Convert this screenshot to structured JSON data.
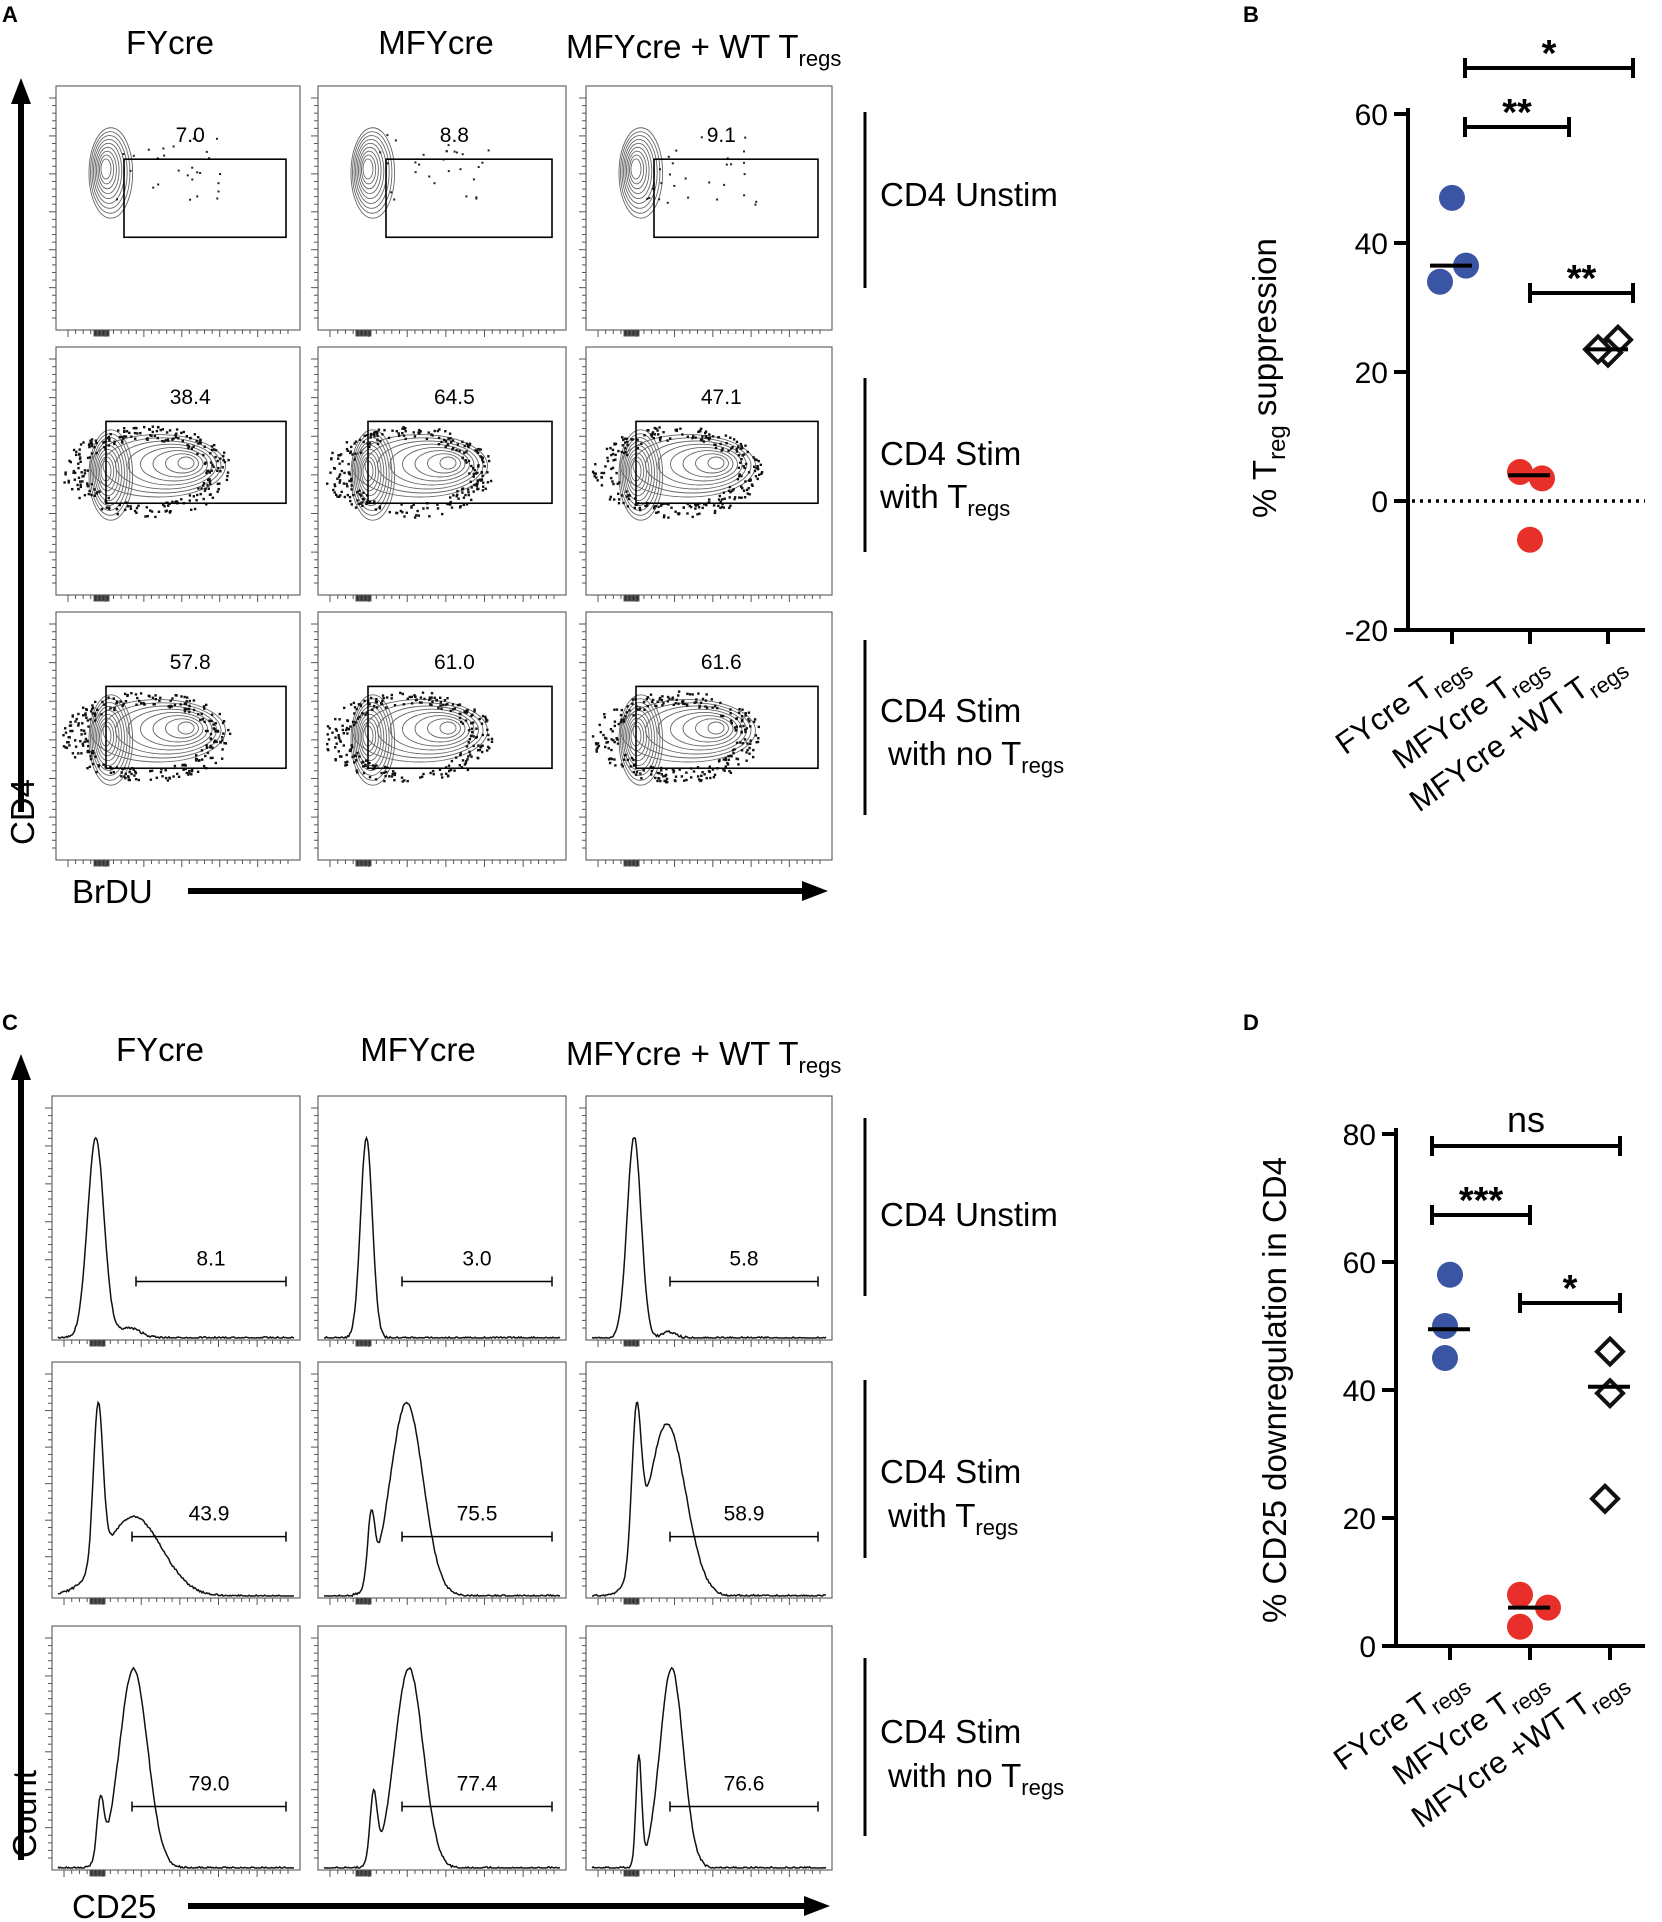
{
  "panels": {
    "a": "A",
    "b": "B",
    "c": "C",
    "d": "D"
  },
  "columns": {
    "fycre": "FYcre",
    "mfycre": "MFYcre",
    "mfycre_wt": "MFYcre + WT T",
    "mfycre_wt_sub": "regs"
  },
  "rows": {
    "unstim": "CD4 Unstim",
    "stim_l1": "CD4 Stim",
    "with": "with T",
    "with_no": "with no T",
    "sub": "regs"
  },
  "panel_a": {
    "y_axis": "CD4",
    "x_axis": "BrDU",
    "gates": [
      [
        "7.0",
        "8.8",
        "9.1"
      ],
      [
        "38.4",
        "64.5",
        "47.1"
      ],
      [
        "57.8",
        "61.0",
        "61.6"
      ]
    ]
  },
  "panel_c": {
    "y_axis": "Count",
    "x_axis": "CD25",
    "gates": [
      [
        "8.1",
        "3.0",
        "5.8"
      ],
      [
        "43.9",
        "75.5",
        "58.9"
      ],
      [
        "79.0",
        "77.4",
        "76.6"
      ]
    ]
  },
  "chart_data": [
    {
      "type": "scatter",
      "panel": "B",
      "ylabel_pre": "% T",
      "ylabel_sub": "reg",
      "ylabel_post": " suppression",
      "ylim": [
        -20,
        60
      ],
      "yticks": [
        "60",
        "40",
        "20",
        "0",
        "-20"
      ],
      "categories": [
        {
          "main": "FYcre T",
          "sub": "regs"
        },
        {
          "main": "MFYcre T",
          "sub": "regs"
        },
        {
          "main": "MFYcre +WT T",
          "sub": "regs"
        }
      ],
      "series": [
        {
          "name": "FYcre Tregs",
          "color": "#3a55a4",
          "marker": "circle",
          "values": [
            47,
            34,
            36.5
          ],
          "mean": 36.5
        },
        {
          "name": "MFYcre Tregs",
          "color": "#e8302a",
          "marker": "circle",
          "values": [
            4.5,
            3.5,
            -6
          ],
          "mean": 4
        },
        {
          "name": "MFYcre +WT Tregs",
          "color": "#111111",
          "marker": "diamond",
          "values": [
            25,
            23,
            23.5
          ],
          "mean": 23.5
        }
      ],
      "reference_line": 0,
      "comparisons": [
        {
          "pair": [
            0,
            2
          ],
          "label": "*"
        },
        {
          "pair": [
            0,
            1
          ],
          "label": "**"
        },
        {
          "pair": [
            1,
            2
          ],
          "label": "**"
        }
      ]
    },
    {
      "type": "scatter",
      "panel": "D",
      "ylabel": "% CD25 downregulation in CD4",
      "ylim": [
        0,
        80
      ],
      "yticks": [
        "80",
        "60",
        "40",
        "20",
        "0"
      ],
      "categories": [
        {
          "main": "FYcre T",
          "sub": "regs"
        },
        {
          "main": "MFYcre T",
          "sub": "regs"
        },
        {
          "main": "MFYcre +WT T",
          "sub": "regs"
        }
      ],
      "series": [
        {
          "name": "FYcre Tregs",
          "color": "#3a55a4",
          "marker": "circle",
          "values": [
            58,
            50,
            45
          ],
          "mean": 49.5
        },
        {
          "name": "MFYcre Tregs",
          "color": "#e8302a",
          "marker": "circle",
          "values": [
            8,
            6,
            3
          ],
          "mean": 6
        },
        {
          "name": "MFYcre +WT Tregs",
          "color": "#111111",
          "marker": "diamond",
          "values": [
            46,
            39.5,
            23
          ],
          "mean": 40.5
        }
      ],
      "comparisons": [
        {
          "pair": [
            0,
            2
          ],
          "label": "ns"
        },
        {
          "pair": [
            0,
            1
          ],
          "label": "***"
        },
        {
          "pair": [
            1,
            2
          ],
          "label": "*"
        }
      ]
    }
  ]
}
